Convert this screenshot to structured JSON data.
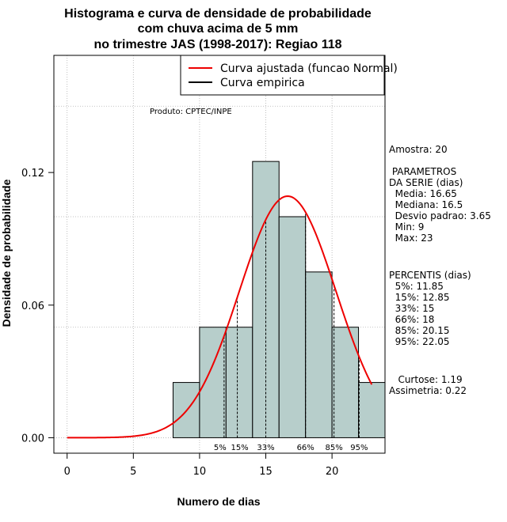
{
  "chart_data": {
    "type": "histogram",
    "title_lines": [
      "Histograma e curva de densidade de probabilidade",
      "com chuva acima de 5 mm",
      "no trimestre JAS (1998-2017): Regiao 118"
    ],
    "xlabel": "Numero de dias",
    "ylabel": "Densidade de probabilidade",
    "xlim": [
      -1,
      24
    ],
    "ylim": [
      -0.007,
      0.173
    ],
    "x_ticks": [
      0,
      5,
      10,
      15,
      20
    ],
    "y_ticks": [
      0.0,
      0.06,
      0.12
    ],
    "y_tick_labels": [
      "0.00",
      "0.06",
      "0.12"
    ],
    "bins": [
      {
        "from": 8,
        "to": 10,
        "density": 0.025
      },
      {
        "from": 10,
        "to": 12,
        "density": 0.05
      },
      {
        "from": 12,
        "to": 14,
        "density": 0.05
      },
      {
        "from": 14,
        "to": 16,
        "density": 0.125
      },
      {
        "from": 16,
        "to": 18,
        "density": 0.1
      },
      {
        "from": 18,
        "to": 20,
        "density": 0.075
      },
      {
        "from": 20,
        "to": 22,
        "density": 0.05
      },
      {
        "from": 22,
        "to": 24,
        "density": 0.025
      }
    ],
    "normal_fit": {
      "mean": 16.65,
      "sd": 3.65,
      "x_from": 0,
      "x_to": 23
    },
    "percentile_lines": [
      {
        "label": "5%",
        "x": 11.85
      },
      {
        "label": "15%",
        "x": 12.85
      },
      {
        "label": "33%",
        "x": 15
      },
      {
        "label": "66%",
        "x": 18
      },
      {
        "label": "85%",
        "x": 20.15
      },
      {
        "label": "95%",
        "x": 22.05
      }
    ],
    "legend": [
      {
        "label": "Curva ajustada (funcao Normal)",
        "color": "#ee0000"
      },
      {
        "label": "Curva empirica",
        "color": "#000000"
      }
    ],
    "bar_color": "#b7cecb",
    "curve_color": "#ee0000",
    "grid_color": "#b0b0b0",
    "product_label": "Produto: CPTEC/INPE"
  },
  "side_panel": {
    "sample": "Amostra: 20",
    "params_title": " PARAMETROS",
    "params_subtitle": "DA SERIE (dias)",
    "params": [
      "  Media: 16.65",
      "  Mediana: 16.5",
      "  Desvio padrao: 3.65",
      "  Min: 9",
      "  Max: 23"
    ],
    "pct_title": "PERCENTIS (dias)",
    "percentiles": [
      "  5%: 11.85",
      "  15%: 12.85",
      "  33%: 15",
      "  66%: 18",
      "  85%: 20.15",
      "  95%: 22.05"
    ],
    "kurtosis": "   Curtose: 1.19",
    "skewness": "Assimetria: 0.22"
  }
}
